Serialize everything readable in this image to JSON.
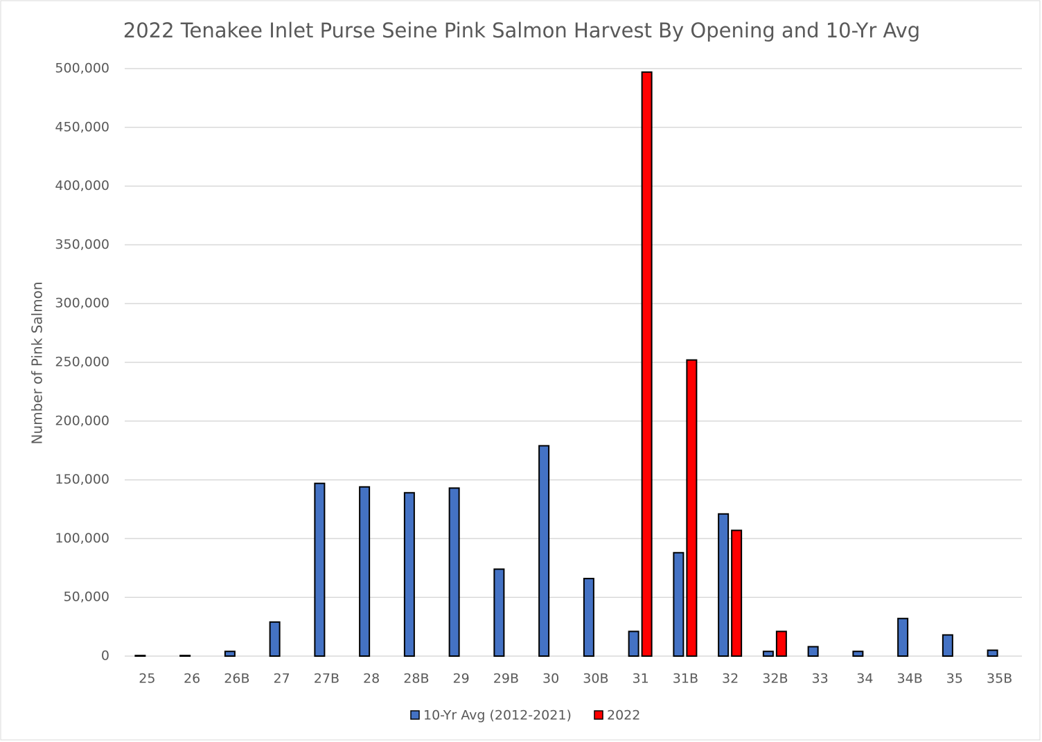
{
  "chart_data": {
    "type": "bar",
    "title": "2022 Tenakee Inlet Purse Seine Pink Salmon Harvest By Opening and 10-Yr Avg",
    "y_label": "Number of Pink Salmon",
    "categories": [
      "25",
      "26",
      "26B",
      "27",
      "27B",
      "28",
      "28B",
      "29",
      "29B",
      "30",
      "30B",
      "31",
      "31B",
      "32",
      "32B",
      "33",
      "34",
      "34B",
      "35",
      "35B"
    ],
    "series": [
      {
        "name": "10-Yr Avg (2012-2021)",
        "color": "#4472c4",
        "values": [
          500,
          500,
          4000,
          29000,
          147000,
          144000,
          139000,
          143000,
          74000,
          179000,
          66000,
          21000,
          88000,
          121000,
          4000,
          8000,
          4000,
          32000,
          18000,
          5000
        ]
      },
      {
        "name": "2022",
        "color": "#ff0000",
        "values": [
          null,
          null,
          null,
          null,
          null,
          null,
          null,
          null,
          null,
          null,
          null,
          497000,
          252000,
          107000,
          21000,
          null,
          null,
          null,
          null,
          null
        ]
      }
    ],
    "ylim": [
      0,
      500000
    ],
    "yticks": [
      0,
      {
        "value": 50000,
        "label": "50,000"
      },
      {
        "value": 100000,
        "label": "100,000"
      },
      {
        "value": 150000,
        "label": "150,000"
      },
      {
        "value": 200000,
        "label": "200,000"
      },
      {
        "value": 250000,
        "label": "250,000"
      },
      {
        "value": 300000,
        "label": "300,000"
      },
      {
        "value": 350000,
        "label": "350,000"
      },
      {
        "value": 400000,
        "label": "400,000"
      },
      {
        "value": 450000,
        "label": "450,000"
      },
      {
        "value": 500000,
        "label": "500,000"
      }
    ],
    "grid": true,
    "legend": "bottom"
  }
}
